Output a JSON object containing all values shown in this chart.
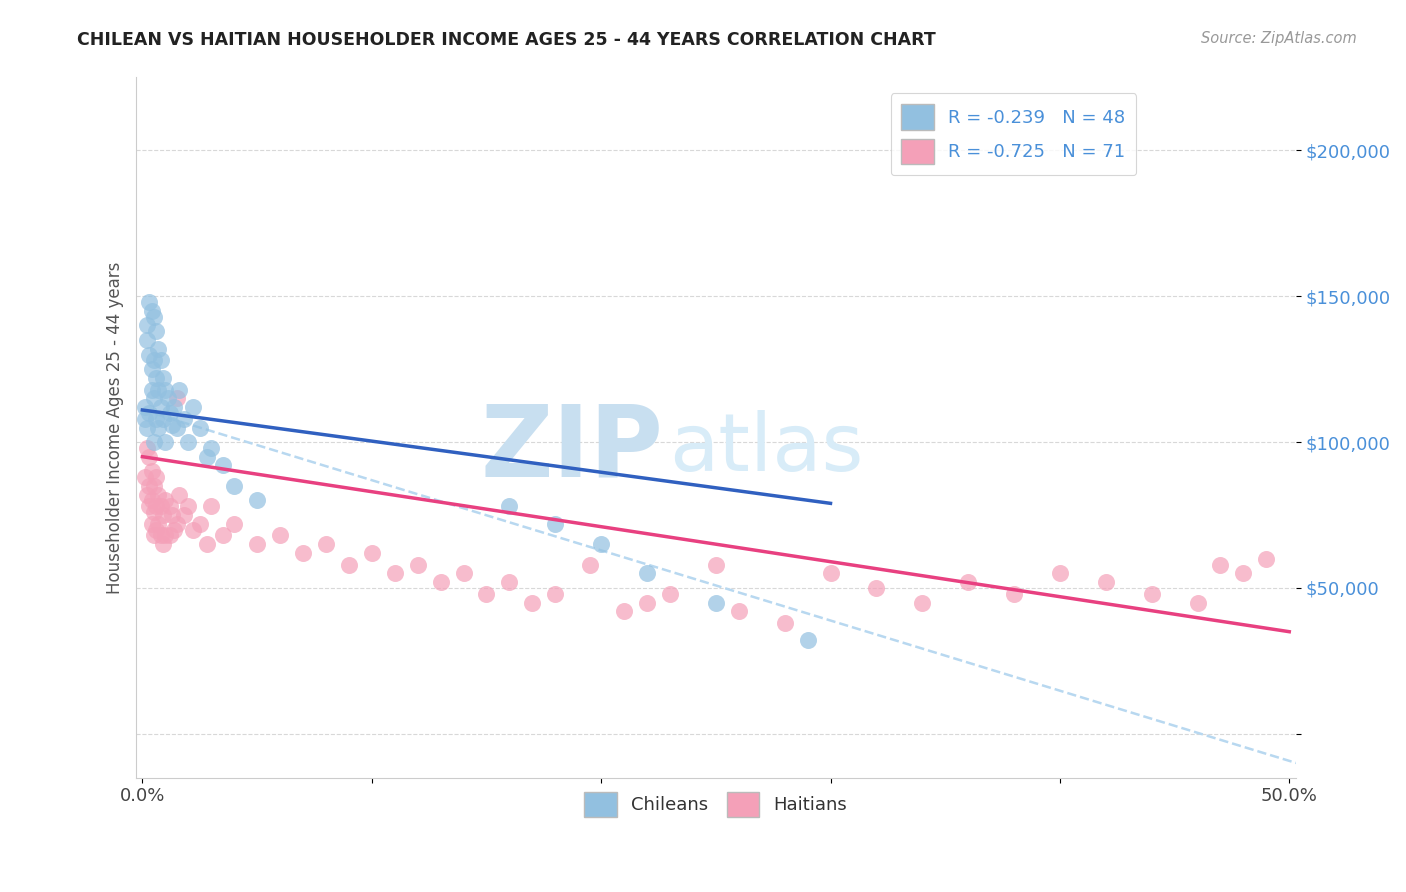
{
  "title": "CHILEAN VS HAITIAN HOUSEHOLDER INCOME AGES 25 - 44 YEARS CORRELATION CHART",
  "source": "Source: ZipAtlas.com",
  "ylabel": "Householder Income Ages 25 - 44 years",
  "xlim": [
    -0.003,
    0.503
  ],
  "ylim": [
    -15000,
    225000
  ],
  "yticks": [
    0,
    50000,
    100000,
    150000,
    200000
  ],
  "ytick_labels": [
    "",
    "$50,000",
    "$100,000",
    "$150,000",
    "$200,000"
  ],
  "xticks": [
    0.0,
    0.5
  ],
  "xtick_labels": [
    "0.0%",
    "50.0%"
  ],
  "legend_line1": "R = -0.239   N = 48",
  "legend_line2": "R = -0.725   N = 71",
  "chilean_color": "#92c0e0",
  "haitian_color": "#f4a0b8",
  "trend_chilean_color": "#3060c0",
  "trend_haitian_color": "#e84080",
  "dashed_line_color": "#b8d8f0",
  "watermark_zip_color": "#c8dff0",
  "watermark_atlas_color": "#d8ecf8",
  "background_color": "#ffffff",
  "title_color": "#222222",
  "axis_label_color": "#555555",
  "ytick_color": "#4a90d9",
  "source_color": "#999999",
  "grid_color": "#d8d8d8",
  "chilean_x": [
    0.001,
    0.001,
    0.002,
    0.002,
    0.002,
    0.003,
    0.003,
    0.003,
    0.004,
    0.004,
    0.004,
    0.005,
    0.005,
    0.005,
    0.005,
    0.006,
    0.006,
    0.006,
    0.007,
    0.007,
    0.007,
    0.008,
    0.008,
    0.009,
    0.009,
    0.01,
    0.01,
    0.011,
    0.012,
    0.013,
    0.014,
    0.015,
    0.016,
    0.018,
    0.02,
    0.022,
    0.025,
    0.028,
    0.03,
    0.035,
    0.04,
    0.05,
    0.16,
    0.18,
    0.2,
    0.22,
    0.25,
    0.29
  ],
  "chilean_y": [
    112000,
    108000,
    140000,
    135000,
    105000,
    148000,
    130000,
    110000,
    145000,
    125000,
    118000,
    143000,
    128000,
    115000,
    100000,
    138000,
    122000,
    108000,
    132000,
    118000,
    105000,
    128000,
    112000,
    122000,
    108000,
    118000,
    100000,
    115000,
    110000,
    106000,
    112000,
    105000,
    118000,
    108000,
    100000,
    112000,
    105000,
    95000,
    98000,
    92000,
    85000,
    80000,
    78000,
    72000,
    65000,
    55000,
    45000,
    32000
  ],
  "haitian_x": [
    0.001,
    0.002,
    0.002,
    0.003,
    0.003,
    0.003,
    0.004,
    0.004,
    0.004,
    0.005,
    0.005,
    0.005,
    0.006,
    0.006,
    0.006,
    0.007,
    0.007,
    0.008,
    0.008,
    0.009,
    0.009,
    0.01,
    0.01,
    0.012,
    0.012,
    0.013,
    0.014,
    0.015,
    0.015,
    0.016,
    0.018,
    0.02,
    0.022,
    0.025,
    0.028,
    0.03,
    0.035,
    0.04,
    0.05,
    0.06,
    0.07,
    0.08,
    0.09,
    0.1,
    0.11,
    0.12,
    0.13,
    0.14,
    0.15,
    0.16,
    0.17,
    0.18,
    0.195,
    0.21,
    0.22,
    0.23,
    0.25,
    0.26,
    0.28,
    0.3,
    0.32,
    0.34,
    0.36,
    0.38,
    0.4,
    0.42,
    0.44,
    0.46,
    0.47,
    0.48,
    0.49
  ],
  "haitian_y": [
    88000,
    98000,
    82000,
    95000,
    85000,
    78000,
    90000,
    80000,
    72000,
    85000,
    76000,
    68000,
    88000,
    78000,
    70000,
    82000,
    72000,
    78000,
    68000,
    75000,
    65000,
    80000,
    68000,
    78000,
    68000,
    75000,
    70000,
    115000,
    72000,
    82000,
    75000,
    78000,
    70000,
    72000,
    65000,
    78000,
    68000,
    72000,
    65000,
    68000,
    62000,
    65000,
    58000,
    62000,
    55000,
    58000,
    52000,
    55000,
    48000,
    52000,
    45000,
    48000,
    58000,
    42000,
    45000,
    48000,
    58000,
    42000,
    38000,
    55000,
    50000,
    45000,
    52000,
    48000,
    55000,
    52000,
    48000,
    45000,
    58000,
    55000,
    60000
  ],
  "chilean_trend_x": [
    0.0,
    0.3
  ],
  "chilean_trend_y": [
    111000,
    79000
  ],
  "haitian_trend_x": [
    0.0,
    0.5
  ],
  "haitian_trend_y": [
    95000,
    35000
  ],
  "dashed_trend_x": [
    0.0,
    0.503
  ],
  "dashed_trend_y": [
    111000,
    -10000
  ]
}
